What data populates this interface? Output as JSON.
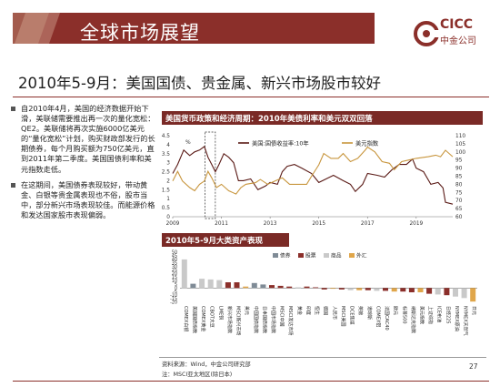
{
  "header": {
    "title": "全球市场展望"
  },
  "logo": {
    "en": "CICC",
    "cn": "中金公司"
  },
  "slide_title": "2010年5-9月：美国国债、贵金属、新兴市场股市较好",
  "bullets": [
    "自2010年4月，美国的经济数据开始下滑，美联储需要推出再一次的量化宽松：QE2。美联储将再次实施6000亿美元的“量化宽松”计划，购买财政部发行的长期债券，每个月购买额为750亿美元，直到2011年第二季度。美国国债利率和美元指数走低。",
    "在这期间，美国债券表现较好，带动黄金、白银等贵金属表现也不俗，股市当中，部分新兴市场表现较佳。而能源价格和发达国家股市表现偏弱。"
  ],
  "chart_data": [
    {
      "type": "line",
      "title": "美国货币政策和经济周期：2010年美债利率和美元双双回落",
      "y_left_unit": "%",
      "x_ticks": [
        "2009",
        "2011",
        "2013",
        "2015",
        "2017",
        "2019"
      ],
      "y_left_ticks": [
        0,
        0.5,
        1,
        1.5,
        2,
        2.5,
        3,
        3.5,
        4,
        4.5
      ],
      "y_right_ticks": [
        60,
        65,
        70,
        75,
        80,
        85,
        90,
        95,
        100,
        105,
        110
      ],
      "ylim_left": [
        0,
        4.5
      ],
      "ylim_right": [
        60,
        110
      ],
      "xlim": [
        2009,
        2020.5
      ],
      "highlight": {
        "from": 2010.33,
        "to": 2010.75,
        "style": "dashed box"
      },
      "legend_position": "top",
      "series": [
        {
          "name": "美国:国债收益率:10年",
          "axis": "left",
          "color": "#5a1a16",
          "points": [
            [
              2009.0,
              2.4
            ],
            [
              2009.2,
              2.9
            ],
            [
              2009.45,
              3.7
            ],
            [
              2009.7,
              3.4
            ],
            [
              2009.9,
              3.6
            ],
            [
              2010.1,
              3.7
            ],
            [
              2010.3,
              3.9
            ],
            [
              2010.45,
              3.3
            ],
            [
              2010.6,
              2.9
            ],
            [
              2010.75,
              2.5
            ],
            [
              2010.9,
              2.9
            ],
            [
              2011.1,
              3.5
            ],
            [
              2011.3,
              3.3
            ],
            [
              2011.5,
              3.0
            ],
            [
              2011.7,
              2.0
            ],
            [
              2011.9,
              2.0
            ],
            [
              2012.2,
              2.1
            ],
            [
              2012.5,
              1.5
            ],
            [
              2012.8,
              1.7
            ],
            [
              2013.0,
              1.9
            ],
            [
              2013.3,
              1.8
            ],
            [
              2013.5,
              2.5
            ],
            [
              2013.7,
              2.8
            ],
            [
              2014.0,
              2.9
            ],
            [
              2014.3,
              2.7
            ],
            [
              2014.7,
              2.4
            ],
            [
              2015.0,
              1.9
            ],
            [
              2015.3,
              2.1
            ],
            [
              2015.6,
              2.3
            ],
            [
              2016.0,
              2.0
            ],
            [
              2016.3,
              1.8
            ],
            [
              2016.5,
              1.4
            ],
            [
              2016.8,
              1.8
            ],
            [
              2017.0,
              2.4
            ],
            [
              2017.4,
              2.3
            ],
            [
              2017.7,
              2.2
            ],
            [
              2018.0,
              2.6
            ],
            [
              2018.3,
              2.9
            ],
            [
              2018.6,
              2.9
            ],
            [
              2018.85,
              3.2
            ],
            [
              2019.0,
              2.7
            ],
            [
              2019.3,
              2.5
            ],
            [
              2019.6,
              1.8
            ],
            [
              2019.9,
              1.9
            ],
            [
              2020.1,
              1.6
            ],
            [
              2020.2,
              0.8
            ],
            [
              2020.5,
              0.7
            ]
          ]
        },
        {
          "name": "美元指数",
          "axis": "right",
          "color": "#c8963e",
          "points": [
            [
              2009.0,
              82
            ],
            [
              2009.2,
              88
            ],
            [
              2009.4,
              82
            ],
            [
              2009.7,
              78
            ],
            [
              2009.9,
              76
            ],
            [
              2010.1,
              80
            ],
            [
              2010.3,
              82
            ],
            [
              2010.45,
              88
            ],
            [
              2010.6,
              84
            ],
            [
              2010.8,
              78
            ],
            [
              2011.0,
              80
            ],
            [
              2011.3,
              76
            ],
            [
              2011.6,
              74
            ],
            [
              2011.8,
              78
            ],
            [
              2012.0,
              80
            ],
            [
              2012.4,
              81
            ],
            [
              2012.6,
              83
            ],
            [
              2012.9,
              80
            ],
            [
              2013.2,
              82
            ],
            [
              2013.5,
              84
            ],
            [
              2013.8,
              80
            ],
            [
              2014.2,
              80
            ],
            [
              2014.5,
              80
            ],
            [
              2014.7,
              85
            ],
            [
              2015.0,
              92
            ],
            [
              2015.2,
              99
            ],
            [
              2015.5,
              96
            ],
            [
              2015.8,
              96
            ],
            [
              2016.0,
              99
            ],
            [
              2016.3,
              94
            ],
            [
              2016.6,
              96
            ],
            [
              2016.9,
              101
            ],
            [
              2017.0,
              103
            ],
            [
              2017.3,
              100
            ],
            [
              2017.6,
              94
            ],
            [
              2017.9,
              93
            ],
            [
              2018.1,
              89
            ],
            [
              2018.4,
              94
            ],
            [
              2018.7,
              95
            ],
            [
              2019.0,
              96
            ],
            [
              2019.5,
              97
            ],
            [
              2019.8,
              98
            ],
            [
              2020.0,
              97
            ],
            [
              2020.2,
              101
            ],
            [
              2020.5,
              97
            ]
          ]
        }
      ]
    },
    {
      "type": "bar",
      "title": "2010年5-9月大类资产表现",
      "ylim": [
        -20,
        50
      ],
      "y_ticks": [
        -20,
        -15,
        -10,
        -5,
        0,
        5,
        10,
        15,
        20,
        25,
        30,
        35,
        40,
        45,
        50
      ],
      "legend_position": "top",
      "legend": [
        {
          "name": "债券",
          "color": "#7f8b96"
        },
        {
          "name": "股票",
          "color": "#8b2f2a"
        },
        {
          "name": "商品",
          "color": "#c9c9c9"
        },
        {
          "name": "外汇",
          "color": "#e0a64a"
        }
      ],
      "bars": [
        {
          "label": "COMEX白银",
          "value": 40,
          "group": "商品"
        },
        {
          "label": "美国国债指数",
          "value": 6,
          "group": "债券"
        },
        {
          "label": "COMEX黄金",
          "value": 13,
          "group": "商品"
        },
        {
          "label": "CBOT大豆",
          "value": 12,
          "group": "商品"
        },
        {
          "label": "LME铜",
          "value": 11,
          "group": "商品"
        },
        {
          "label": "新兴市场指数",
          "value": 8,
          "group": "股票"
        },
        {
          "label": "MSCI新兴市场",
          "value": 8,
          "group": "股票"
        },
        {
          "label": "美元",
          "value": 2,
          "group": "外汇"
        },
        {
          "label": "中国国债指数",
          "value": 7,
          "group": "债券"
        },
        {
          "label": "日本国债指数",
          "value": 5,
          "group": "债券"
        },
        {
          "label": "中国市场指数",
          "value": 4,
          "group": "股票"
        },
        {
          "label": "MSCI中国",
          "value": 3,
          "group": "股票"
        },
        {
          "label": "MSCI发达市场",
          "value": 2,
          "group": "股票"
        },
        {
          "label": "黄金",
          "value": 1,
          "group": "商品"
        },
        {
          "label": "印度",
          "value": 2,
          "group": "股票"
        },
        {
          "label": "恒生",
          "value": 1,
          "group": "股票"
        },
        {
          "label": "德国",
          "value": -2,
          "group": "股票"
        },
        {
          "label": "人民币",
          "value": -1,
          "group": "外汇"
        },
        {
          "label": "MSCI美国",
          "value": -2,
          "group": "股票"
        },
        {
          "label": "DCE焦煤",
          "value": -3,
          "group": "商品"
        },
        {
          "label": "英镑",
          "value": -3,
          "group": "外汇"
        },
        {
          "label": "道琼斯",
          "value": -3,
          "group": "股票"
        },
        {
          "label": "COMEX铝",
          "value": -4,
          "group": "商品"
        },
        {
          "label": "法国CAC40",
          "value": -4,
          "group": "股票"
        },
        {
          "label": "欧元",
          "value": -5,
          "group": "外汇"
        },
        {
          "label": "标普500",
          "value": -5,
          "group": "股票"
        },
        {
          "label": "纳斯达克指数",
          "value": -6,
          "group": "股票"
        },
        {
          "label": "美元指数",
          "value": -6,
          "group": "外汇"
        },
        {
          "label": "上证综指",
          "value": -8,
          "group": "股票"
        },
        {
          "label": "ICE布油",
          "value": -9,
          "group": "商品"
        },
        {
          "label": "日经225",
          "value": -10,
          "group": "股票"
        },
        {
          "label": "NYMEX原油",
          "value": -12,
          "group": "商品"
        },
        {
          "label": "NYMEX天然气",
          "value": -14,
          "group": "商品"
        },
        {
          "label": "日元",
          "value": -19,
          "group": "外汇"
        }
      ]
    }
  ],
  "footer": {
    "source": "资料来源：Wind，中金公司研究部",
    "note": "注：MSCI亚太地区(除日本)",
    "page": "27"
  }
}
